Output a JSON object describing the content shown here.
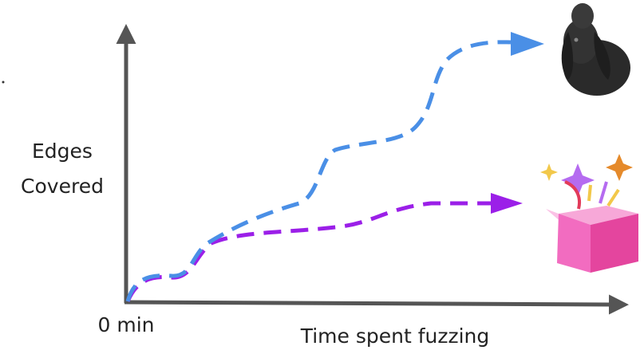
{
  "axes": {
    "y_label": [
      "Edges",
      "Covered"
    ],
    "x_origin_label": "0 min",
    "x_label": "Time spent fuzzing"
  }
}
